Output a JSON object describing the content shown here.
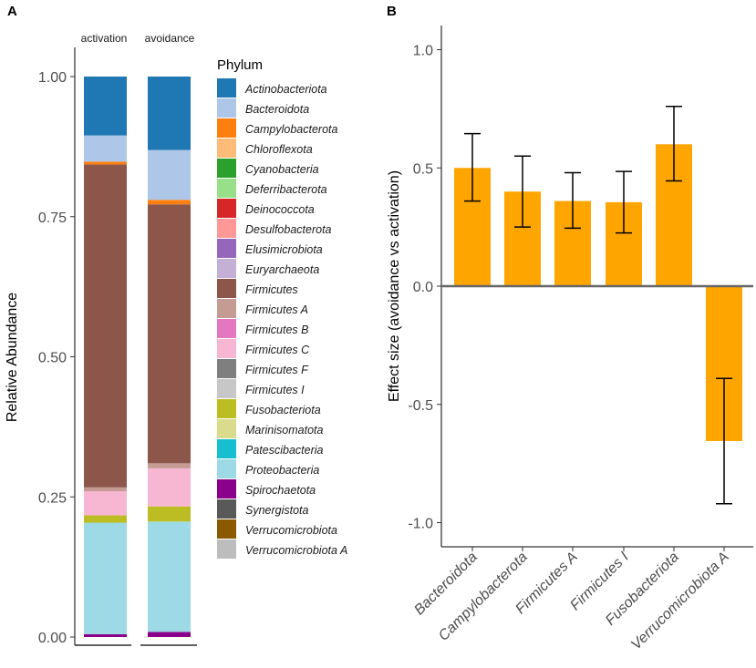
{
  "chart_data": [
    {
      "panel_label": "A",
      "type": "bar",
      "stacked": true,
      "facets": [
        "activation",
        "avoidance"
      ],
      "ylabel": "Relative Abundance",
      "ylim": [
        0,
        1
      ],
      "yticks": [
        "0.00",
        "0.25",
        "0.50",
        "0.75",
        "1.00"
      ],
      "legend_title": "Phylum",
      "legend": [
        {
          "name": "Actinobacteriota",
          "color": "#1f77b4"
        },
        {
          "name": "Bacteroidota",
          "color": "#aec7e8"
        },
        {
          "name": "Campylobacterota",
          "color": "#ff7f0e"
        },
        {
          "name": "Chloroflexota",
          "color": "#ffbb78"
        },
        {
          "name": "Cyanobacteria",
          "color": "#2ca02c"
        },
        {
          "name": "Deferribacterota",
          "color": "#98df8a"
        },
        {
          "name": "Deinococcota",
          "color": "#d62728"
        },
        {
          "name": "Desulfobacterota",
          "color": "#ff9896"
        },
        {
          "name": "Elusimicrobiota",
          "color": "#9467bd"
        },
        {
          "name": "Euryarchaeota",
          "color": "#c5b0d5"
        },
        {
          "name": "Firmicutes",
          "color": "#8c564b"
        },
        {
          "name": "Firmicutes A",
          "color": "#c49c94"
        },
        {
          "name": "Firmicutes B",
          "color": "#e377c2"
        },
        {
          "name": "Firmicutes C",
          "color": "#f7b6d2"
        },
        {
          "name": "Firmicutes F",
          "color": "#7f7f7f"
        },
        {
          "name": "Firmicutes I",
          "color": "#c7c7c7"
        },
        {
          "name": "Fusobacteriota",
          "color": "#bcbd22"
        },
        {
          "name": "Marinisomatota",
          "color": "#dbdb8d"
        },
        {
          "name": "Patescibacteria",
          "color": "#17becf"
        },
        {
          "name": "Proteobacteria",
          "color": "#9edae5"
        },
        {
          "name": "Spirochaetota",
          "color": "#8b008b"
        },
        {
          "name": "Synergistota",
          "color": "#595959"
        },
        {
          "name": "Verrucomicrobiota",
          "color": "#8b5a00"
        },
        {
          "name": "Verrucomicrobiota A",
          "color": "#bdbdbd"
        }
      ],
      "series": [
        {
          "name": "activation",
          "segments": [
            {
              "phylum": "Spirochaetota",
              "value": 0.005
            },
            {
              "phylum": "Proteobacteria",
              "value": 0.199
            },
            {
              "phylum": "Fusobacteriota",
              "value": 0.013
            },
            {
              "phylum": "Firmicutes C",
              "value": 0.043
            },
            {
              "phylum": "Firmicutes A",
              "value": 0.007
            },
            {
              "phylum": "Firmicutes",
              "value": 0.576
            },
            {
              "phylum": "Campylobacterota",
              "value": 0.005
            },
            {
              "phylum": "Bacteroidota",
              "value": 0.047
            },
            {
              "phylum": "Actinobacteriota",
              "value": 0.105
            }
          ]
        },
        {
          "name": "avoidance",
          "segments": [
            {
              "phylum": "Spirochaetota",
              "value": 0.009
            },
            {
              "phylum": "Proteobacteria",
              "value": 0.197
            },
            {
              "phylum": "Fusobacteriota",
              "value": 0.027
            },
            {
              "phylum": "Firmicutes C",
              "value": 0.068
            },
            {
              "phylum": "Firmicutes A",
              "value": 0.009
            },
            {
              "phylum": "Firmicutes",
              "value": 0.462
            },
            {
              "phylum": "Campylobacterota",
              "value": 0.008
            },
            {
              "phylum": "Bacteroidota",
              "value": 0.089
            },
            {
              "phylum": "Actinobacteriota",
              "value": 0.131
            }
          ]
        }
      ]
    },
    {
      "panel_label": "B",
      "type": "bar",
      "ylabel": "Effect size (avoidance vs activation)",
      "ylim": [
        -1.1,
        1.1
      ],
      "yticks": [
        "-1.0",
        "-0.5",
        "0.0",
        "0.5",
        "1.0"
      ],
      "bar_color": "#ffa500",
      "categories": [
        "Bacteroidota",
        "Campylobacterota",
        "Firmicutes A",
        "Firmicutes I",
        "Fusobacteriota",
        "Verrucomicrobiota A"
      ],
      "values": [
        0.5,
        0.4,
        0.36,
        0.355,
        0.6,
        -0.655
      ],
      "error_low": [
        0.36,
        0.25,
        0.245,
        0.225,
        0.445,
        -0.92
      ],
      "error_high": [
        0.645,
        0.55,
        0.48,
        0.485,
        0.76,
        -0.39
      ]
    }
  ]
}
